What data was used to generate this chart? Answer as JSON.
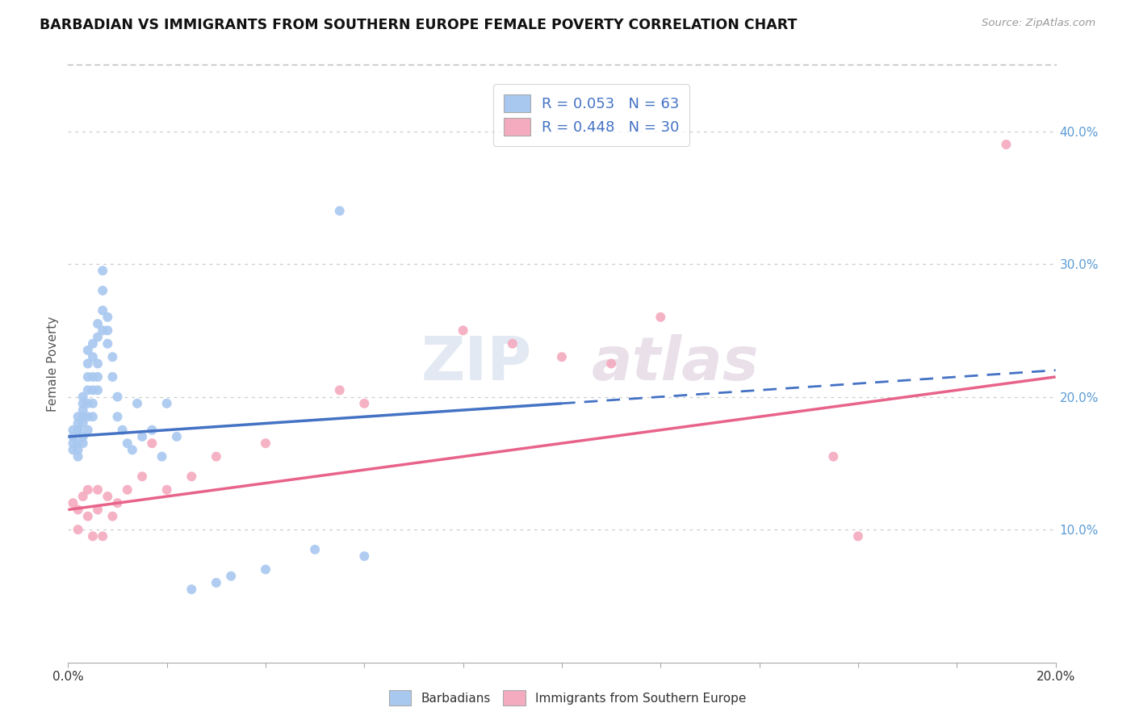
{
  "title": "BARBADIAN VS IMMIGRANTS FROM SOUTHERN EUROPE FEMALE POVERTY CORRELATION CHART",
  "source": "Source: ZipAtlas.com",
  "ylabel": "Female Poverty",
  "xlim": [
    0.0,
    0.2
  ],
  "ylim": [
    0.0,
    0.45
  ],
  "xticks": [
    0.0,
    0.2
  ],
  "xticklabels": [
    "0.0%",
    "20.0%"
  ],
  "yticks": [
    0.1,
    0.2,
    0.3,
    0.4
  ],
  "yticklabels": [
    "10.0%",
    "20.0%",
    "30.0%",
    "40.0%"
  ],
  "legend1_label": "R = 0.053   N = 63",
  "legend2_label": "R = 0.448   N = 30",
  "legend_sublabel1": "Barbadians",
  "legend_sublabel2": "Immigrants from Southern Europe",
  "blue_color": "#A8C8F0",
  "pink_color": "#F4AABF",
  "blue_line_color": "#4472C4",
  "pink_line_color": "#E8638A",
  "blue_points_x": [
    0.001,
    0.001,
    0.001,
    0.001,
    0.002,
    0.002,
    0.002,
    0.002,
    0.002,
    0.002,
    0.002,
    0.003,
    0.003,
    0.003,
    0.003,
    0.003,
    0.003,
    0.003,
    0.004,
    0.004,
    0.004,
    0.004,
    0.004,
    0.004,
    0.004,
    0.005,
    0.005,
    0.005,
    0.005,
    0.005,
    0.005,
    0.006,
    0.006,
    0.006,
    0.006,
    0.006,
    0.007,
    0.007,
    0.007,
    0.007,
    0.008,
    0.008,
    0.008,
    0.009,
    0.009,
    0.01,
    0.01,
    0.011,
    0.012,
    0.013,
    0.014,
    0.015,
    0.017,
    0.019,
    0.02,
    0.022,
    0.025,
    0.03,
    0.033,
    0.04,
    0.05,
    0.055,
    0.06
  ],
  "blue_points_y": [
    0.17,
    0.175,
    0.165,
    0.16,
    0.175,
    0.18,
    0.185,
    0.175,
    0.165,
    0.16,
    0.155,
    0.2,
    0.195,
    0.19,
    0.185,
    0.18,
    0.17,
    0.165,
    0.235,
    0.225,
    0.215,
    0.205,
    0.195,
    0.185,
    0.175,
    0.24,
    0.23,
    0.215,
    0.205,
    0.195,
    0.185,
    0.255,
    0.245,
    0.225,
    0.215,
    0.205,
    0.295,
    0.28,
    0.265,
    0.25,
    0.26,
    0.25,
    0.24,
    0.23,
    0.215,
    0.2,
    0.185,
    0.175,
    0.165,
    0.16,
    0.195,
    0.17,
    0.175,
    0.155,
    0.195,
    0.17,
    0.055,
    0.06,
    0.065,
    0.07,
    0.085,
    0.34,
    0.08
  ],
  "pink_points_x": [
    0.001,
    0.002,
    0.002,
    0.003,
    0.004,
    0.004,
    0.005,
    0.006,
    0.006,
    0.007,
    0.008,
    0.009,
    0.01,
    0.012,
    0.015,
    0.017,
    0.02,
    0.025,
    0.03,
    0.04,
    0.055,
    0.06,
    0.08,
    0.09,
    0.1,
    0.11,
    0.12,
    0.155,
    0.16,
    0.19
  ],
  "pink_points_y": [
    0.12,
    0.115,
    0.1,
    0.125,
    0.11,
    0.13,
    0.095,
    0.115,
    0.13,
    0.095,
    0.125,
    0.11,
    0.12,
    0.13,
    0.14,
    0.165,
    0.13,
    0.14,
    0.155,
    0.165,
    0.205,
    0.195,
    0.25,
    0.24,
    0.23,
    0.225,
    0.26,
    0.155,
    0.095,
    0.39
  ],
  "blue_line_x": [
    0.0,
    0.1
  ],
  "blue_line_y": [
    0.17,
    0.195
  ],
  "pink_line_x": [
    0.0,
    0.2
  ],
  "pink_line_y": [
    0.115,
    0.215
  ]
}
